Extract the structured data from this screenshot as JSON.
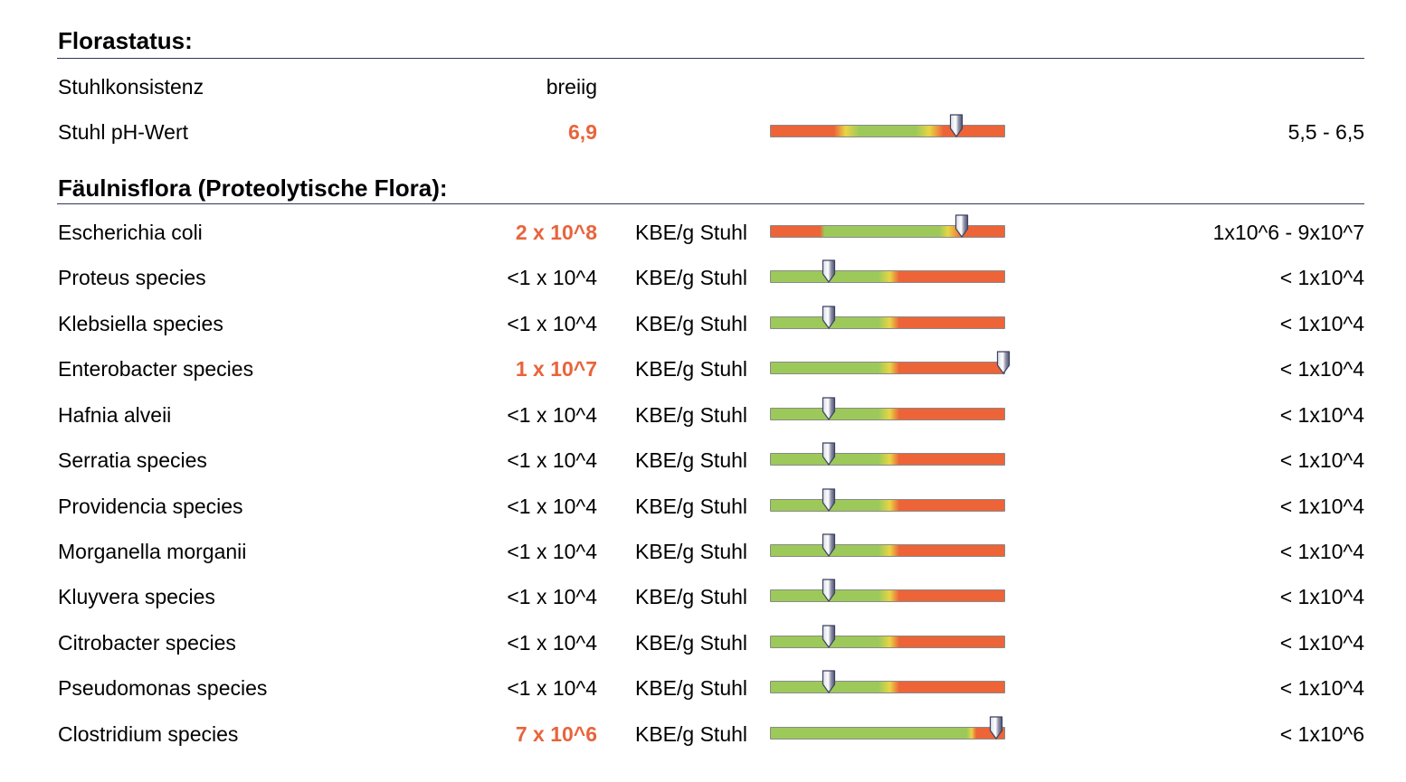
{
  "florastatus": {
    "title": "Florastatus:",
    "rows": [
      {
        "name": "Stuhlkonsistenz",
        "value": "breiig",
        "high": false,
        "unit": "",
        "ref": "",
        "gauge": null
      },
      {
        "name": "Stuhl pH-Wert",
        "value": "6,9",
        "high": true,
        "unit": "",
        "ref": "5,5 - 6,5",
        "gauge": "ph",
        "marker": 0.8
      }
    ]
  },
  "faeulnisflora": {
    "title": "Fäulnisflora (Proteolytische Flora):",
    "rows": [
      {
        "name": "Escherichia coli",
        "value": "2 x 10^8",
        "high": true,
        "unit": "KBE/g Stuhl",
        "ref": "1x10^6 - 9x10^7",
        "gauge": "range",
        "marker": 0.82
      },
      {
        "name": "Proteus species",
        "value": "<1 x 10^4",
        "high": false,
        "unit": "KBE/g Stuhl",
        "ref": "< 1x10^4",
        "gauge": "upper",
        "marker": 0.25
      },
      {
        "name": "Klebsiella species",
        "value": "<1 x 10^4",
        "high": false,
        "unit": "KBE/g Stuhl",
        "ref": "< 1x10^4",
        "gauge": "upper",
        "marker": 0.25
      },
      {
        "name": "Enterobacter species",
        "value": "1 x 10^7",
        "high": true,
        "unit": "KBE/g Stuhl",
        "ref": "< 1x10^4",
        "gauge": "upper",
        "marker": 1.0
      },
      {
        "name": "Hafnia alveii",
        "value": "<1 x 10^4",
        "high": false,
        "unit": "KBE/g Stuhl",
        "ref": "< 1x10^4",
        "gauge": "upper",
        "marker": 0.25
      },
      {
        "name": "Serratia species",
        "value": "<1 x 10^4",
        "high": false,
        "unit": "KBE/g Stuhl",
        "ref": "< 1x10^4",
        "gauge": "upper",
        "marker": 0.25
      },
      {
        "name": "Providencia species",
        "value": "<1 x 10^4",
        "high": false,
        "unit": "KBE/g Stuhl",
        "ref": "< 1x10^4",
        "gauge": "upper",
        "marker": 0.25
      },
      {
        "name": "Morganella morganii",
        "value": "<1 x 10^4",
        "high": false,
        "unit": "KBE/g Stuhl",
        "ref": "< 1x10^4",
        "gauge": "upper",
        "marker": 0.25
      },
      {
        "name": "Kluyvera species",
        "value": "<1 x 10^4",
        "high": false,
        "unit": "KBE/g Stuhl",
        "ref": "< 1x10^4",
        "gauge": "upper",
        "marker": 0.25
      },
      {
        "name": "Citrobacter species",
        "value": "<1 x 10^4",
        "high": false,
        "unit": "KBE/g Stuhl",
        "ref": "< 1x10^4",
        "gauge": "upper",
        "marker": 0.25
      },
      {
        "name": "Pseudomonas species",
        "value": "<1 x 10^4",
        "high": false,
        "unit": "KBE/g Stuhl",
        "ref": "< 1x10^4",
        "gauge": "upper",
        "marker": 0.25
      },
      {
        "name": "Clostridium species",
        "value": "7 x 10^6",
        "high": true,
        "unit": "KBE/g Stuhl",
        "ref": "< 1x10^6",
        "gauge": "upper-wide",
        "marker": 0.97
      }
    ]
  },
  "colors": {
    "green": "#9cc95a",
    "orange": "#ec6438",
    "yellow": "#e8d545",
    "rule": "#2b3a55"
  },
  "icons": {
    "marker": "gauge-pointer-icon"
  }
}
